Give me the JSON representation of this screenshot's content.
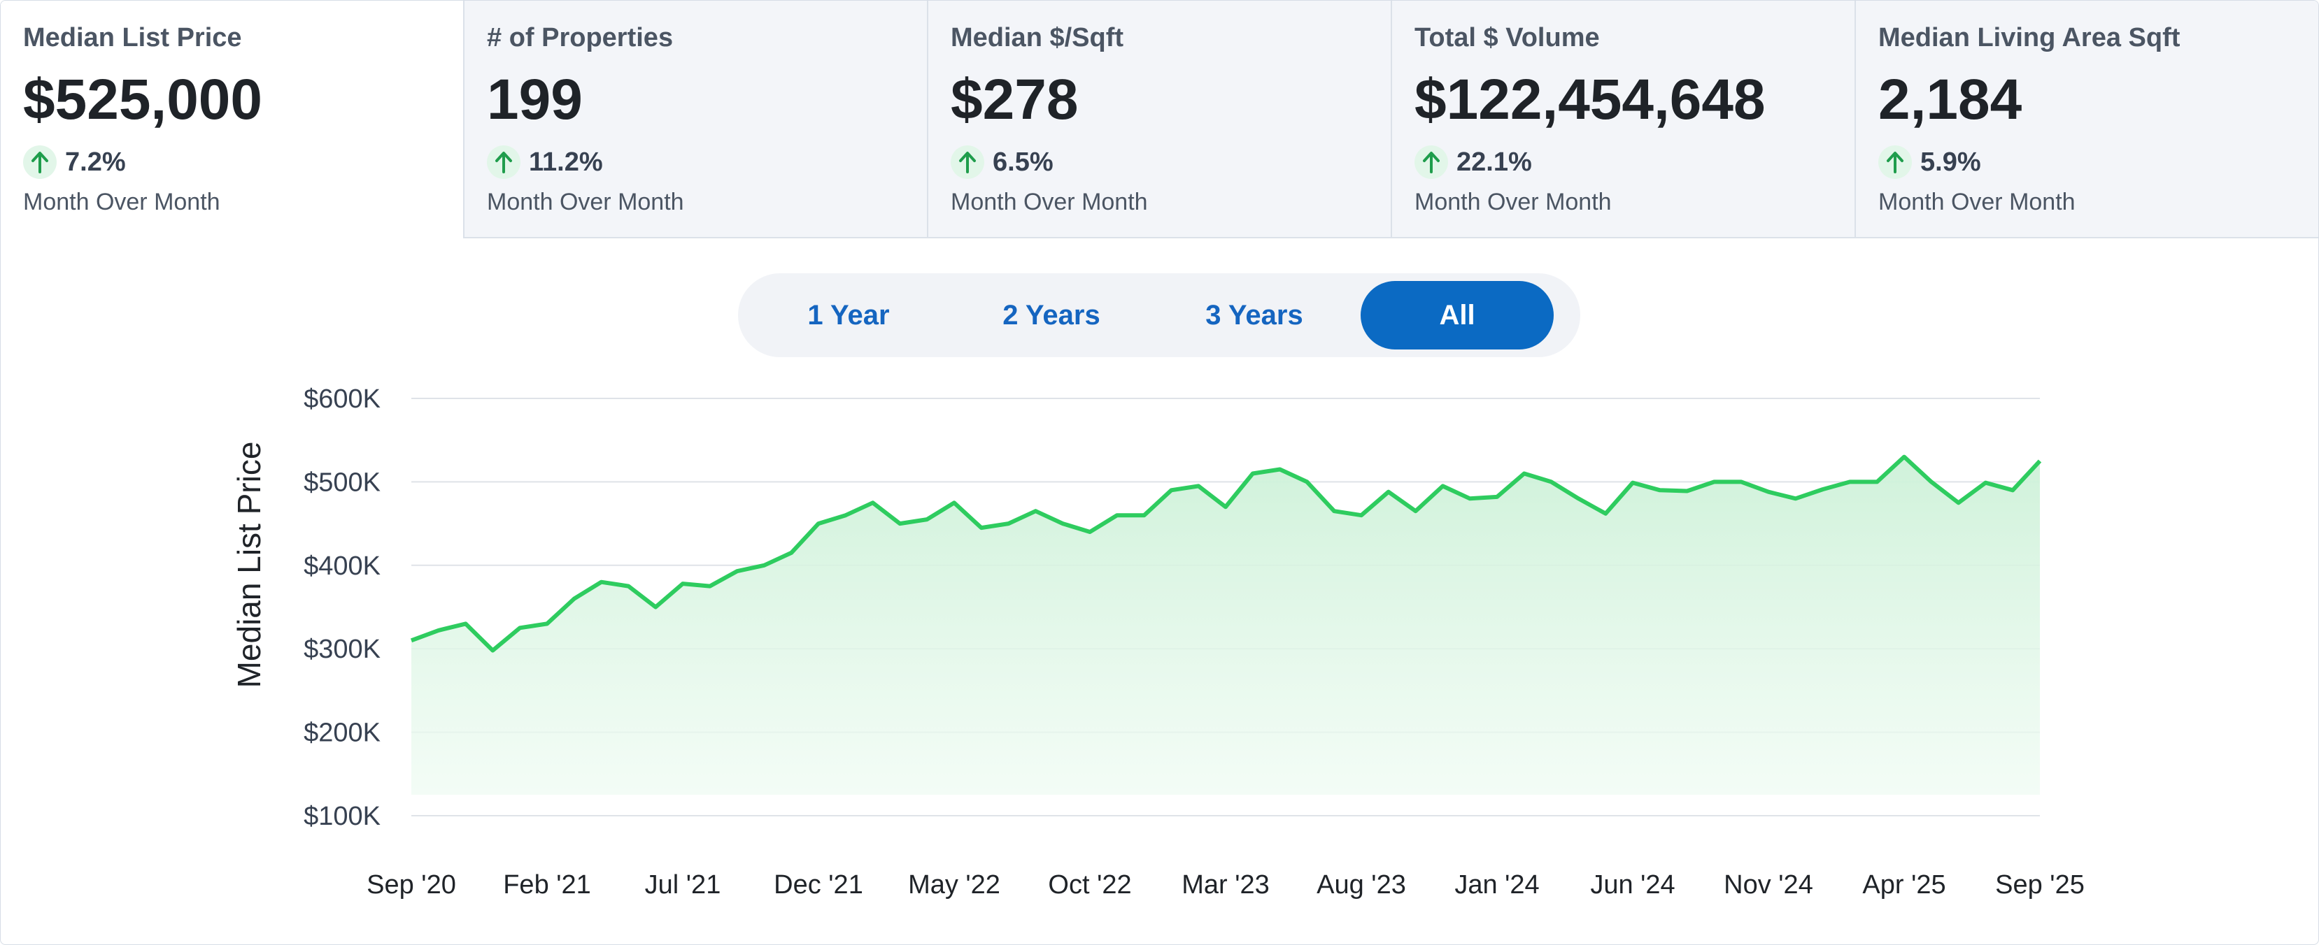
{
  "stats": [
    {
      "title": "Median List Price",
      "value": "$525,000",
      "change": "7.2%",
      "period": "Month Over Month",
      "direction": "up",
      "active": true
    },
    {
      "title": "# of Properties",
      "value": "199",
      "change": "11.2%",
      "period": "Month Over Month",
      "direction": "up",
      "active": false
    },
    {
      "title": "Median $/Sqft",
      "value": "$278",
      "change": "6.5%",
      "period": "Month Over Month",
      "direction": "up",
      "active": false
    },
    {
      "title": "Total $ Volume",
      "value": "$122,454,648",
      "change": "22.1%",
      "period": "Month Over Month",
      "direction": "up",
      "active": false
    },
    {
      "title": "Median Living Area Sqft",
      "value": "2,184",
      "change": "5.9%",
      "period": "Month Over Month",
      "direction": "up",
      "active": false
    }
  ],
  "range_tabs": [
    {
      "label": "1 Year",
      "active": false
    },
    {
      "label": "2 Years",
      "active": false
    },
    {
      "label": "3 Years",
      "active": false
    },
    {
      "label": "All",
      "active": true
    }
  ],
  "colors": {
    "accent": "#0b6ac3",
    "line": "#2ecc5f",
    "fill": "#d9f5e2",
    "positive_badge": "#e2f6e9",
    "positive_arrow": "#1f9d4c"
  },
  "icons": {
    "change_up": "arrow-up-icon"
  },
  "chart_data": {
    "type": "area",
    "ylabel": "Median List Price",
    "y_ticks": [
      "$100K",
      "$200K",
      "$300K",
      "$400K",
      "$500K",
      "$600K"
    ],
    "ylim": [
      100000,
      600000
    ],
    "x_ticks": [
      "Sep '20",
      "Feb '21",
      "Jul '21",
      "Dec '21",
      "May '22",
      "Oct '22",
      "Mar '23",
      "Aug '23",
      "Jan '24",
      "Jun '24",
      "Nov '24",
      "Apr '25",
      "Sep '25"
    ],
    "grid": true,
    "series": [
      {
        "x": [
          "2020-09",
          "2020-10",
          "2020-11",
          "2020-12",
          "2021-01",
          "2021-02",
          "2021-03",
          "2021-04",
          "2021-05",
          "2021-06",
          "2021-07",
          "2021-08",
          "2021-09",
          "2021-10",
          "2021-11",
          "2021-12",
          "2022-01",
          "2022-02",
          "2022-03",
          "2022-04",
          "2022-05",
          "2022-06",
          "2022-07",
          "2022-08",
          "2022-09",
          "2022-10",
          "2022-11",
          "2022-12",
          "2023-01",
          "2023-02",
          "2023-03",
          "2023-04",
          "2023-05",
          "2023-06",
          "2023-07",
          "2023-08",
          "2023-09",
          "2023-10",
          "2023-11",
          "2023-12",
          "2024-01",
          "2024-02",
          "2024-03",
          "2024-04",
          "2024-05",
          "2024-06",
          "2024-07",
          "2024-08",
          "2024-09",
          "2024-10",
          "2024-11",
          "2024-12",
          "2025-01",
          "2025-02",
          "2025-03",
          "2025-04",
          "2025-05",
          "2025-06",
          "2025-07",
          "2025-08",
          "2025-09"
        ],
        "values": [
          310000,
          322000,
          330000,
          298000,
          325000,
          330000,
          360000,
          380000,
          375000,
          350000,
          378000,
          375000,
          393000,
          400000,
          415000,
          450000,
          460000,
          475000,
          450000,
          455000,
          475000,
          445000,
          450000,
          465000,
          450000,
          440000,
          460000,
          460000,
          490000,
          495000,
          470000,
          510000,
          515000,
          500000,
          465000,
          460000,
          488000,
          465000,
          495000,
          480000,
          482000,
          510000,
          500000,
          480000,
          462000,
          499000,
          490000,
          489000,
          500000,
          500000,
          488000,
          480000,
          491000,
          500000,
          500000,
          530000,
          500000,
          475000,
          499000,
          490000,
          525000
        ]
      }
    ]
  }
}
